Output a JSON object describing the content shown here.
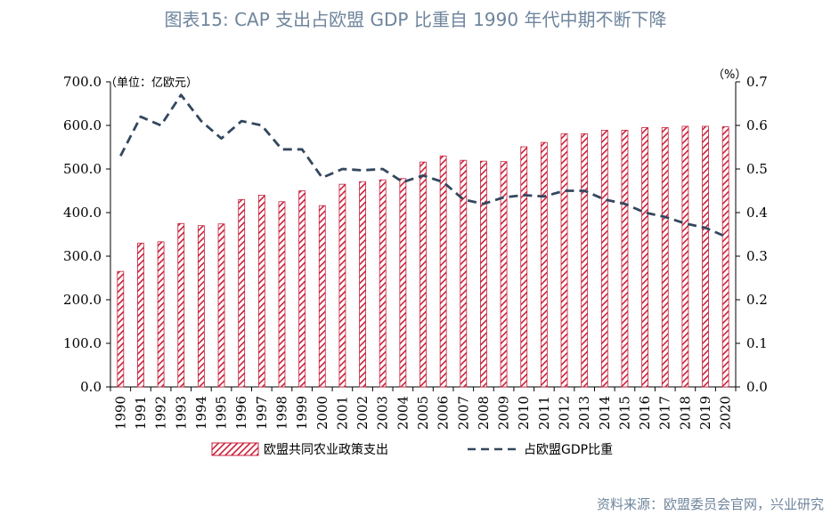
{
  "title": "图表15: CAP 支出占欧盟 GDP 比重自 1990 年代中期不断下降",
  "source": "资料来源：欧盟委员会官网，兴业研究",
  "colors": {
    "bar_stripe": "#c8203a",
    "line": "#33475f",
    "title": "#6f859c"
  },
  "chart_data": {
    "type": "bar",
    "categories": [
      "1990",
      "1991",
      "1992",
      "1993",
      "1994",
      "1995",
      "1996",
      "1997",
      "1998",
      "1999",
      "2000",
      "2001",
      "2002",
      "2003",
      "2004",
      "2005",
      "2006",
      "2007",
      "2008",
      "2009",
      "2010",
      "2011",
      "2012",
      "2013",
      "2014",
      "2015",
      "2016",
      "2017",
      "2018",
      "2019",
      "2020"
    ],
    "left_unit": "（单位：亿欧元）",
    "right_unit": "（%）",
    "ylim": [
      0,
      700
    ],
    "y2lim": [
      0,
      0.7
    ],
    "yticks": [
      "0.0",
      "100.0",
      "200.0",
      "300.0",
      "400.0",
      "500.0",
      "600.0",
      "700.0"
    ],
    "y2ticks": [
      "0.0",
      "0.1",
      "0.2",
      "0.3",
      "0.4",
      "0.5",
      "0.6",
      "0.7"
    ],
    "legend_position": "bottom",
    "series": [
      {
        "name": "欧盟共同农业政策支出",
        "type": "bar",
        "axis": "left",
        "values": [
          265,
          330,
          333,
          375,
          370,
          374,
          430,
          440,
          425,
          450,
          416,
          465,
          471,
          475,
          478,
          516,
          530,
          520,
          518,
          517,
          551,
          561,
          581,
          581,
          589,
          589,
          595,
          595,
          598,
          598,
          597
        ]
      },
      {
        "name": "占欧盟GDP比重",
        "type": "line",
        "axis": "right",
        "values": [
          0.53,
          0.62,
          0.6,
          0.67,
          0.61,
          0.57,
          0.61,
          0.6,
          0.545,
          0.545,
          0.48,
          0.5,
          0.497,
          0.5,
          0.47,
          0.485,
          0.47,
          0.43,
          0.42,
          0.435,
          0.44,
          0.437,
          0.45,
          0.45,
          0.43,
          0.42,
          0.4,
          0.39,
          0.375,
          0.365,
          0.345
        ]
      }
    ]
  }
}
